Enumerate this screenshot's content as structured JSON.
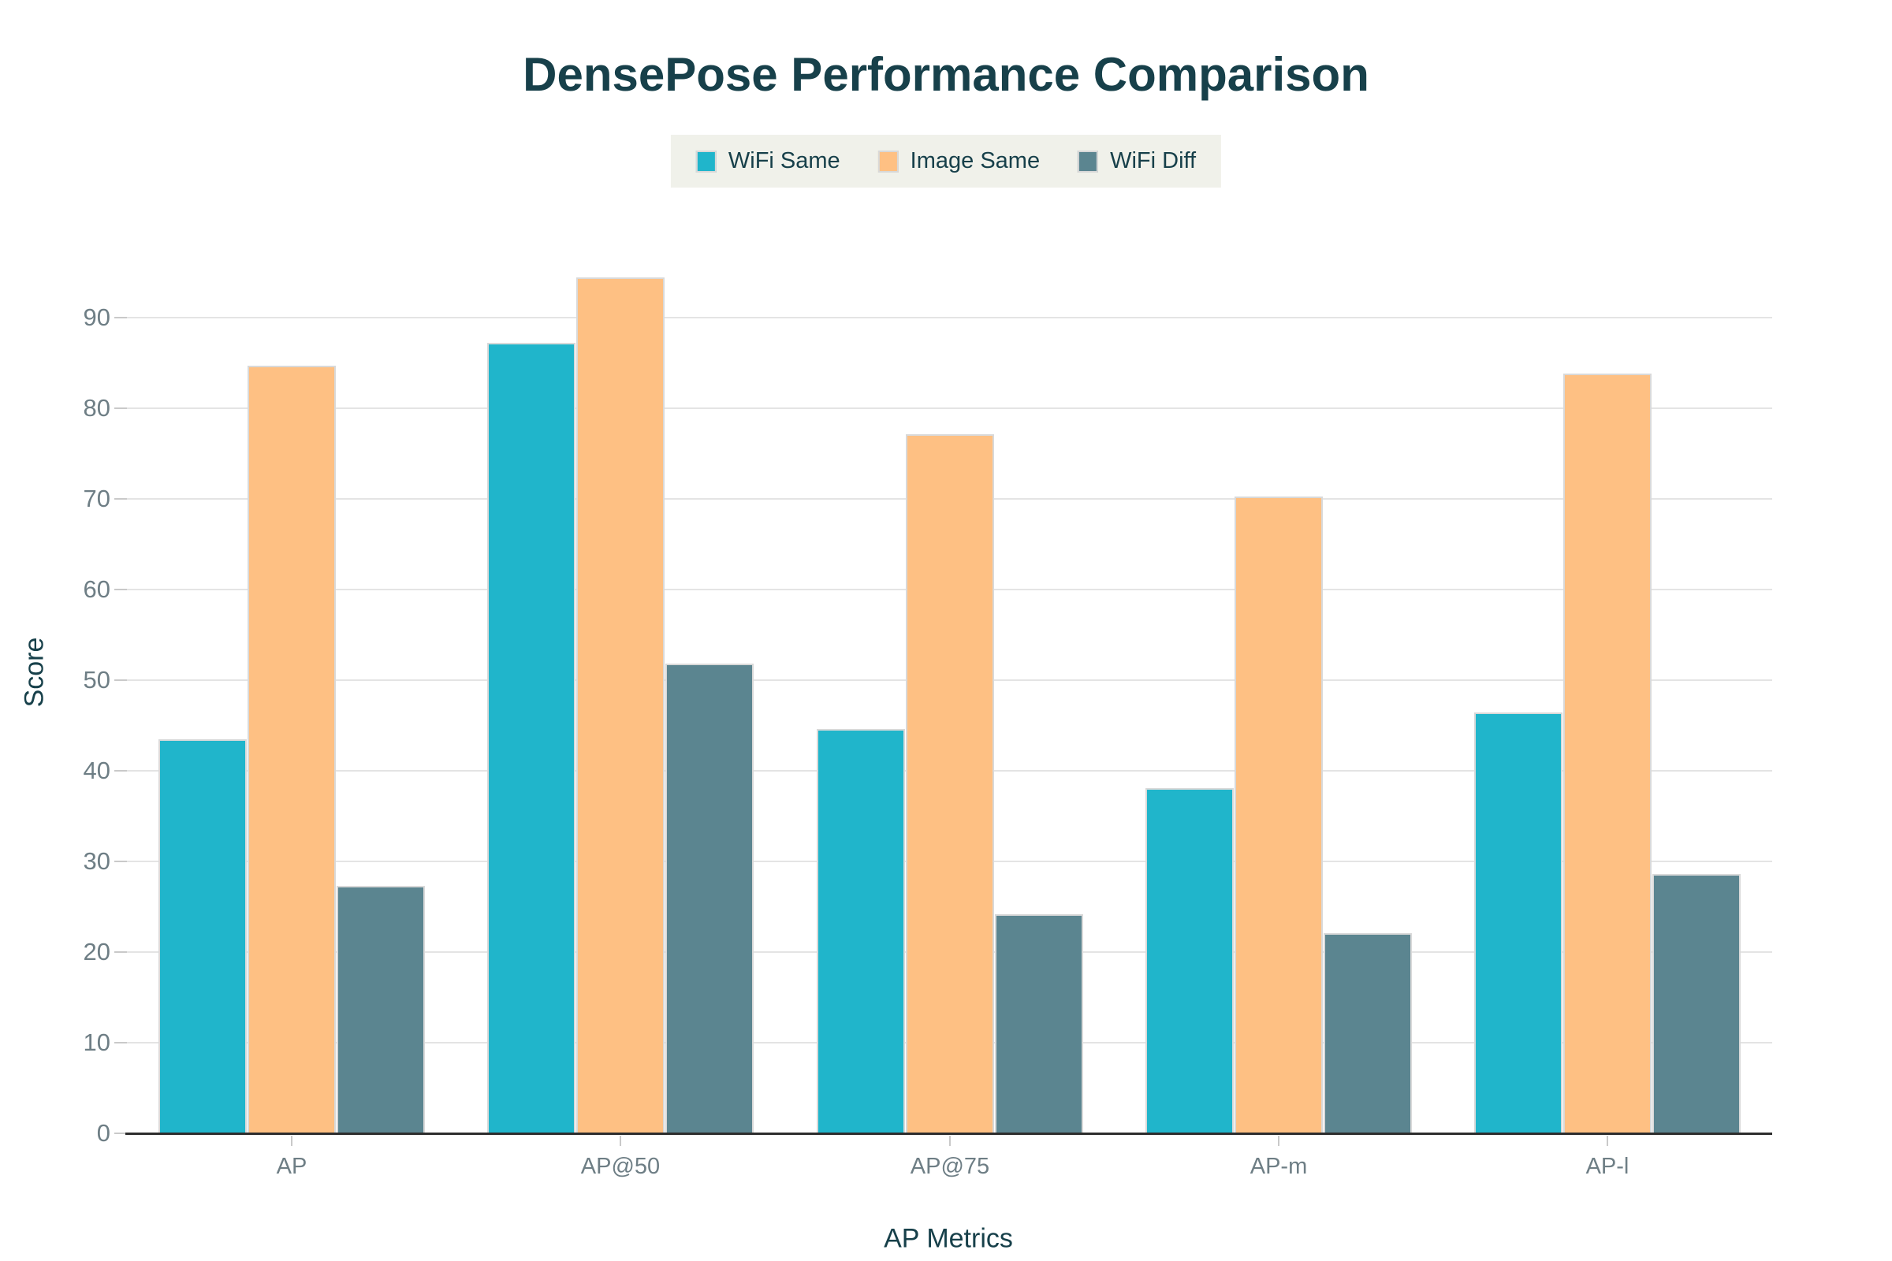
{
  "title": {
    "text": "DensePose Performance Comparison"
  },
  "colors": {
    "background": "#ffffff",
    "title_text": "#17404a",
    "axis_title_text": "#17404a",
    "tick_label_text": "#6e7e85",
    "gridline": "#e4e4e4",
    "tick_mark": "#c9c9c9",
    "axis_line": "#2d2d2d",
    "legend_background": "#f0f1ea",
    "bar_stroke": "#d9d9d9"
  },
  "chart_data": {
    "type": "bar",
    "title": "DensePose Performance Comparison",
    "categories": [
      "AP",
      "AP@50",
      "AP@75",
      "AP-m",
      "AP-l"
    ],
    "series": [
      {
        "name": "WiFi Same",
        "color": "#20b5cb",
        "values": [
          43.5,
          87.2,
          44.6,
          38.1,
          46.4
        ]
      },
      {
        "name": "Image Same",
        "color": "#fec083",
        "values": [
          84.7,
          94.4,
          77.1,
          70.3,
          83.8
        ]
      },
      {
        "name": "WiFi Diff",
        "color": "#5b8590",
        "values": [
          27.3,
          51.8,
          24.2,
          22.1,
          28.6
        ]
      }
    ],
    "xlabel": "AP Metrics",
    "ylabel": "Score",
    "ylim": [
      0,
      101.5
    ],
    "yticks": [
      0,
      10,
      20,
      30,
      40,
      50,
      60,
      70,
      80,
      90
    ],
    "grid": true,
    "legend_position": "top-center"
  }
}
